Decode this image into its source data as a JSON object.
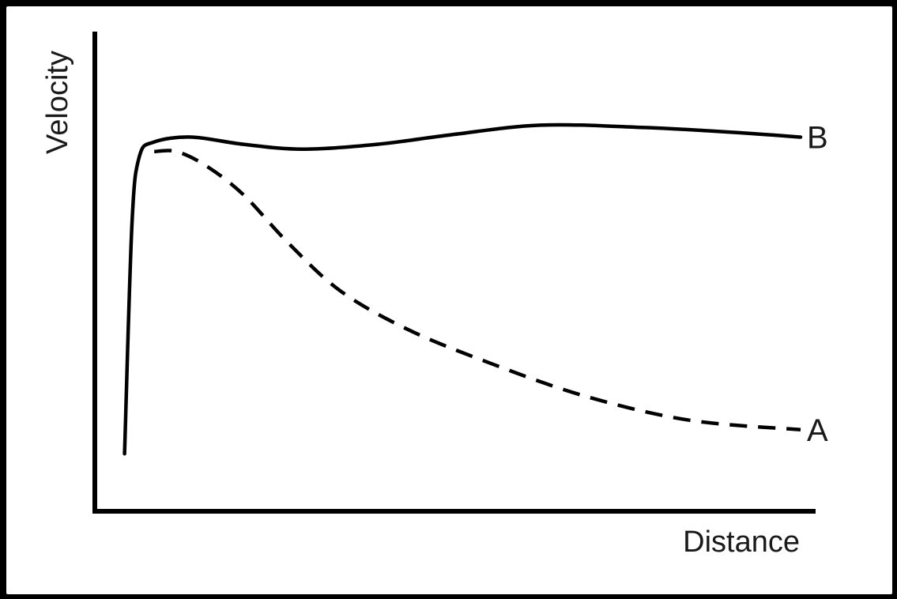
{
  "chart_data": {
    "type": "line",
    "title": "",
    "xlabel": "Distance",
    "ylabel": "Velocity",
    "xlim": [
      0,
      100
    ],
    "ylim": [
      0,
      100
    ],
    "grid": false,
    "axis_ticks": false,
    "series": [
      {
        "name": "B",
        "line_style": "solid",
        "color": "#000000",
        "x": [
          4,
          5,
          6,
          8,
          13,
          20,
          28,
          38,
          48,
          60,
          74,
          86,
          95
        ],
        "y": [
          12,
          60,
          74,
          77,
          78,
          76.5,
          75.5,
          76.5,
          78.5,
          80.5,
          80,
          79,
          78
        ]
      },
      {
        "name": "A",
        "line_style": "dashed",
        "color": "#000000",
        "x": [
          8,
          11,
          15,
          20,
          26,
          33,
          42,
          53,
          66,
          80,
          95
        ],
        "y": [
          75,
          75,
          72,
          66,
          56,
          46,
          38,
          31,
          24,
          19,
          17
        ]
      }
    ]
  }
}
